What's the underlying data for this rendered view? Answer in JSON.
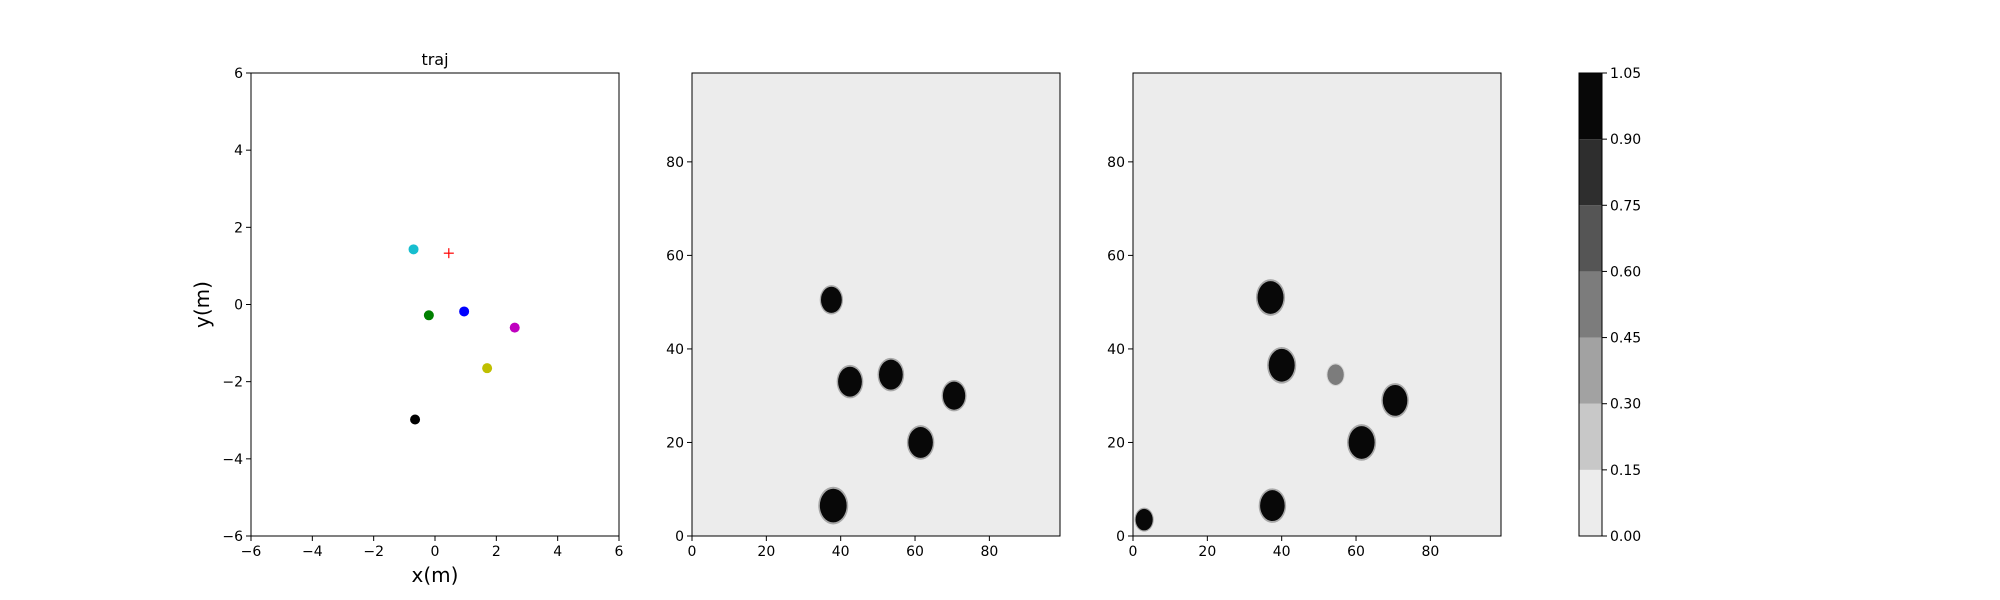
{
  "chart_data": [
    {
      "type": "scatter",
      "title": "traj",
      "xlabel": "x(m)",
      "ylabel": "y(m)",
      "xlim": [
        -6,
        6
      ],
      "ylim": [
        -6,
        6
      ],
      "xticks": [
        "−6",
        "−4",
        "−2",
        "0",
        "2",
        "4",
        "6"
      ],
      "yticks": [
        "−6",
        "−4",
        "−2",
        "0",
        "2",
        "4",
        "6"
      ],
      "grid": false,
      "points": [
        {
          "x": -0.7,
          "y": 1.43,
          "color": "#17becf",
          "marker": "circle"
        },
        {
          "x": -0.2,
          "y": -0.28,
          "color": "#008000",
          "marker": "circle"
        },
        {
          "x": 0.95,
          "y": -0.18,
          "color": "#0000ff",
          "marker": "circle"
        },
        {
          "x": 2.6,
          "y": -0.6,
          "color": "#bf00bf",
          "marker": "circle"
        },
        {
          "x": 1.7,
          "y": -1.65,
          "color": "#bfbf00",
          "marker": "circle"
        },
        {
          "x": -0.65,
          "y": -2.98,
          "color": "#000000",
          "marker": "circle"
        },
        {
          "x": 0.45,
          "y": 1.33,
          "color": "#ff0000",
          "marker": "plus"
        }
      ]
    },
    {
      "type": "heatmap",
      "xlim": [
        0,
        99
      ],
      "ylim": [
        0,
        99
      ],
      "xticks": [
        "0",
        "20",
        "40",
        "60",
        "80"
      ],
      "yticks": [
        "0",
        "20",
        "40",
        "60",
        "80"
      ],
      "background_value": 0.05,
      "blobs": [
        {
          "x": 37.5,
          "y": 50.5,
          "r": 2.8,
          "value": 1.0
        },
        {
          "x": 42.5,
          "y": 33.0,
          "r": 3.2,
          "value": 1.0
        },
        {
          "x": 53.5,
          "y": 34.5,
          "r": 3.2,
          "value": 1.0
        },
        {
          "x": 70.5,
          "y": 30.0,
          "r": 3.0,
          "value": 1.0
        },
        {
          "x": 61.5,
          "y": 20.0,
          "r": 3.3,
          "value": 1.0
        },
        {
          "x": 38.0,
          "y": 6.5,
          "r": 3.6,
          "value": 1.0
        }
      ]
    },
    {
      "type": "heatmap",
      "xlim": [
        0,
        99
      ],
      "ylim": [
        0,
        99
      ],
      "xticks": [
        "0",
        "20",
        "40",
        "60",
        "80"
      ],
      "yticks": [
        "0",
        "20",
        "40",
        "60",
        "80"
      ],
      "background_value": 0.05,
      "blobs": [
        {
          "x": 37.0,
          "y": 51.0,
          "r": 3.5,
          "value": 1.0
        },
        {
          "x": 40.0,
          "y": 36.5,
          "r": 3.5,
          "value": 1.0
        },
        {
          "x": 54.5,
          "y": 34.5,
          "r": 2.2,
          "value": 0.5
        },
        {
          "x": 70.5,
          "y": 29.0,
          "r": 3.3,
          "value": 1.0
        },
        {
          "x": 61.5,
          "y": 20.0,
          "r": 3.5,
          "value": 1.0
        },
        {
          "x": 37.5,
          "y": 6.5,
          "r": 3.3,
          "value": 1.0
        },
        {
          "x": 3.0,
          "y": 3.5,
          "r": 2.3,
          "value": 0.9
        }
      ]
    },
    {
      "type": "colorbar",
      "levels": [
        0.0,
        0.15,
        0.3,
        0.45,
        0.6,
        0.75,
        0.9,
        1.05
      ],
      "tick_labels": [
        "0.00",
        "0.15",
        "0.30",
        "0.45",
        "0.60",
        "0.75",
        "0.90",
        "1.05"
      ],
      "colors": [
        "#ececec",
        "#c8c8c8",
        "#a2a2a2",
        "#7c7c7c",
        "#555555",
        "#2e2e2e",
        "#080808"
      ]
    }
  ]
}
